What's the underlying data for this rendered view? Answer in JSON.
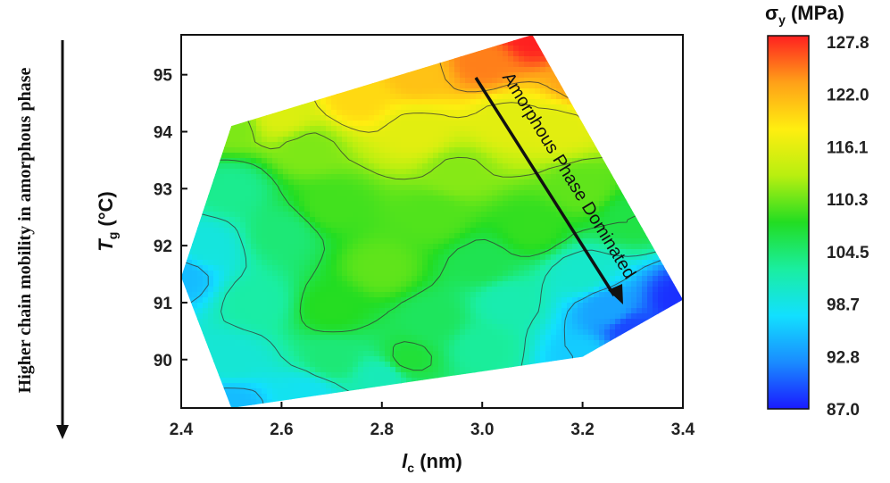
{
  "chart_data": {
    "type": "heatmap",
    "subtype": "filled-contour",
    "xlabel": {
      "main": "l",
      "sub": "c",
      "unit": " (nm)"
    },
    "ylabel": {
      "main": "T",
      "sub": "g",
      "unit": " (°C)"
    },
    "xlim": [
      2.4,
      3.4
    ],
    "ylim": [
      89.15,
      95.7
    ],
    "xticks": [
      "2.4",
      "2.6",
      "2.8",
      "3.0",
      "3.2",
      "3.4"
    ],
    "yticks": [
      "90",
      "91",
      "92",
      "93",
      "94",
      "95"
    ],
    "boundary": [
      [
        2.5,
        94.1
      ],
      [
        3.1,
        95.7
      ],
      [
        3.4,
        91.05
      ],
      [
        3.2,
        90.05
      ],
      [
        2.5,
        89.15
      ],
      [
        2.4,
        91.45
      ]
    ],
    "z_points": [
      {
        "x": 3.1,
        "y": 95.7,
        "z": 127.8
      },
      {
        "x": 3.0,
        "y": 95.2,
        "z": 124.0
      },
      {
        "x": 2.87,
        "y": 95.0,
        "z": 120.5
      },
      {
        "x": 3.2,
        "y": 94.9,
        "z": 122.5
      },
      {
        "x": 2.75,
        "y": 94.6,
        "z": 119.0
      },
      {
        "x": 2.6,
        "y": 94.3,
        "z": 115.0
      },
      {
        "x": 2.87,
        "y": 94.0,
        "z": 115.5
      },
      {
        "x": 3.05,
        "y": 94.2,
        "z": 115.5
      },
      {
        "x": 3.15,
        "y": 94.1,
        "z": 115.5
      },
      {
        "x": 2.5,
        "y": 94.1,
        "z": 110.5
      },
      {
        "x": 2.65,
        "y": 93.7,
        "z": 110.5
      },
      {
        "x": 2.95,
        "y": 93.3,
        "z": 110.8
      },
      {
        "x": 3.2,
        "y": 93.0,
        "z": 109.5
      },
      {
        "x": 2.5,
        "y": 93.0,
        "z": 103.0
      },
      {
        "x": 2.7,
        "y": 92.7,
        "z": 108.5
      },
      {
        "x": 2.9,
        "y": 92.5,
        "z": 109.0
      },
      {
        "x": 3.1,
        "y": 92.3,
        "z": 108.0
      },
      {
        "x": 3.3,
        "y": 92.5,
        "z": 106.0
      },
      {
        "x": 2.45,
        "y": 92.0,
        "z": 99.0
      },
      {
        "x": 2.6,
        "y": 92.2,
        "z": 104.0
      },
      {
        "x": 2.8,
        "y": 91.6,
        "z": 109.5
      },
      {
        "x": 3.0,
        "y": 91.7,
        "z": 105.5
      },
      {
        "x": 3.2,
        "y": 91.5,
        "z": 100.0
      },
      {
        "x": 2.4,
        "y": 91.45,
        "z": 95.0
      },
      {
        "x": 2.55,
        "y": 91.0,
        "z": 102.0
      },
      {
        "x": 2.7,
        "y": 90.9,
        "z": 107.5
      },
      {
        "x": 2.9,
        "y": 90.7,
        "z": 105.0
      },
      {
        "x": 3.05,
        "y": 91.0,
        "z": 101.5
      },
      {
        "x": 3.25,
        "y": 90.9,
        "z": 93.5
      },
      {
        "x": 3.4,
        "y": 91.05,
        "z": 88.0
      },
      {
        "x": 3.3,
        "y": 90.5,
        "z": 89.0
      },
      {
        "x": 2.5,
        "y": 90.0,
        "z": 99.5
      },
      {
        "x": 2.7,
        "y": 90.0,
        "z": 104.0
      },
      {
        "x": 2.85,
        "y": 90.0,
        "z": 106.5
      },
      {
        "x": 3.0,
        "y": 90.2,
        "z": 102.5
      },
      {
        "x": 3.2,
        "y": 90.05,
        "z": 96.0
      },
      {
        "x": 2.5,
        "y": 89.2,
        "z": 95.0
      },
      {
        "x": 2.65,
        "y": 89.4,
        "z": 98.0
      },
      {
        "x": 2.8,
        "y": 89.7,
        "z": 101.0
      }
    ],
    "colorbar": {
      "title": {
        "main": "σ",
        "sub": "y",
        "unit": " (MPa)"
      },
      "labels": [
        "127.8",
        "122.0",
        "116.1",
        "110.3",
        "104.5",
        "98.7",
        "92.8",
        "87.0"
      ],
      "min": 87.0,
      "max": 127.8,
      "colors": [
        "#1a1aff",
        "#1a8cff",
        "#12e0ff",
        "#1aeea0",
        "#22dd22",
        "#b8ef10",
        "#ffee10",
        "#ffa018",
        "#ff2020"
      ]
    },
    "annotation": "Amorphous Phase Dominated",
    "side_label": "Higher chain mobility in amorphous phase"
  }
}
